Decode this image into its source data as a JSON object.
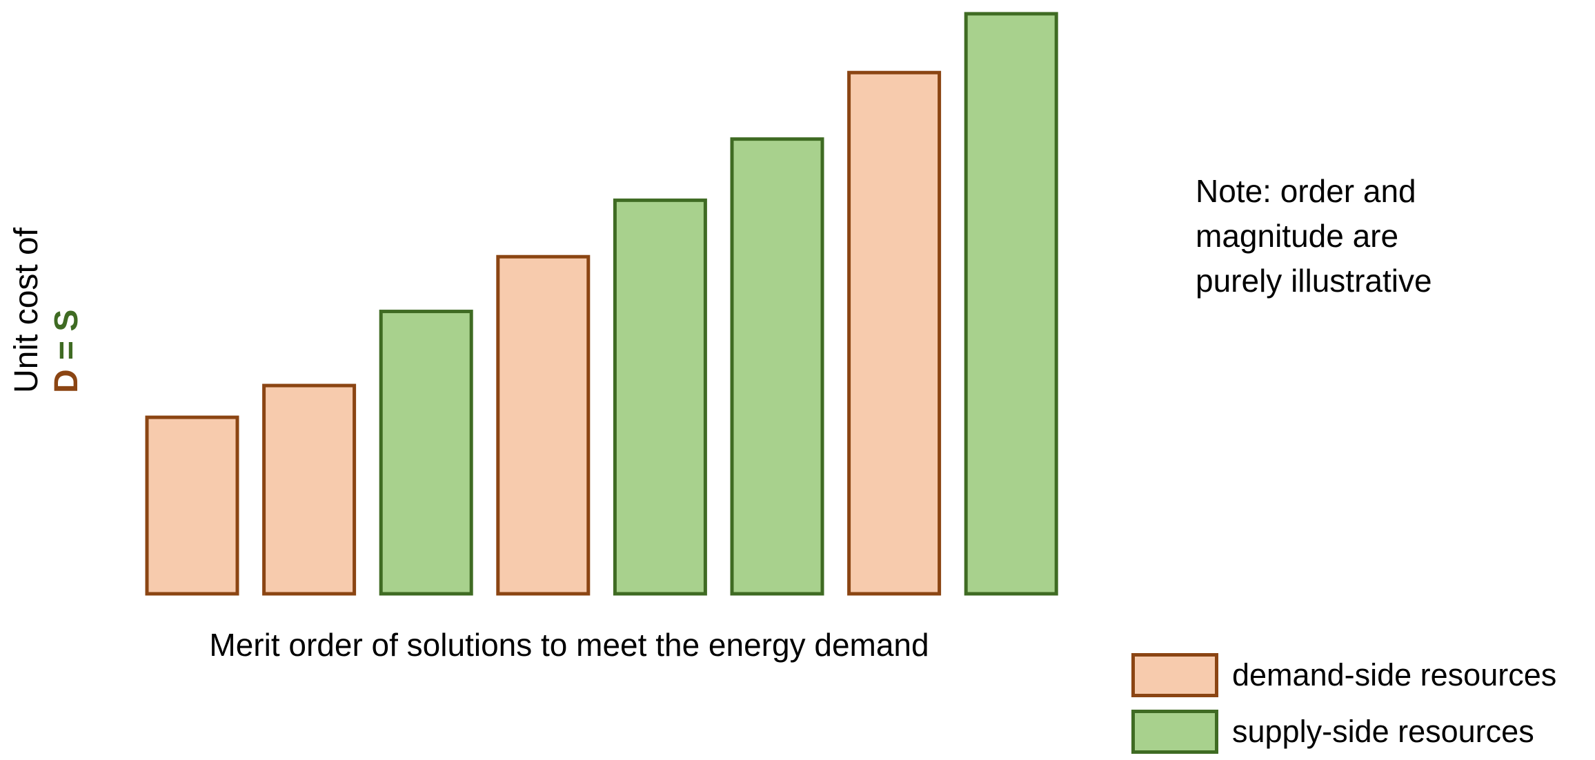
{
  "chart_data": {
    "type": "bar",
    "categories": [
      "",
      "",
      "",
      "",
      "",
      "",
      "",
      ""
    ],
    "series": [
      {
        "name": "demand-side resources",
        "color": "#f7cbad",
        "border": "#8b4513",
        "values": [
          30,
          35.4,
          null,
          57.3,
          null,
          null,
          88.6,
          null
        ]
      },
      {
        "name": "supply-side resources",
        "color": "#a8d18d",
        "border": "#3f6b23",
        "values": [
          null,
          null,
          48,
          null,
          66.9,
          77.3,
          null,
          98.6
        ]
      }
    ],
    "ylim": [
      0,
      100
    ],
    "grid": false,
    "legend_position": "bottom-right",
    "ylabel": {
      "line1": "Unit cost of",
      "d": "D",
      "eq": " = ",
      "s": "S"
    },
    "xlabel": "Merit order of solutions to meet the energy demand",
    "note": [
      "Note: order and",
      "magnitude are",
      "purely illustrative"
    ]
  },
  "legend": [
    {
      "label": "demand-side resources",
      "fill": "#f7cbad",
      "border": "#8b4513"
    },
    {
      "label": "supply-side resources",
      "fill": "#a8d18d",
      "border": "#3f6b23"
    }
  ]
}
